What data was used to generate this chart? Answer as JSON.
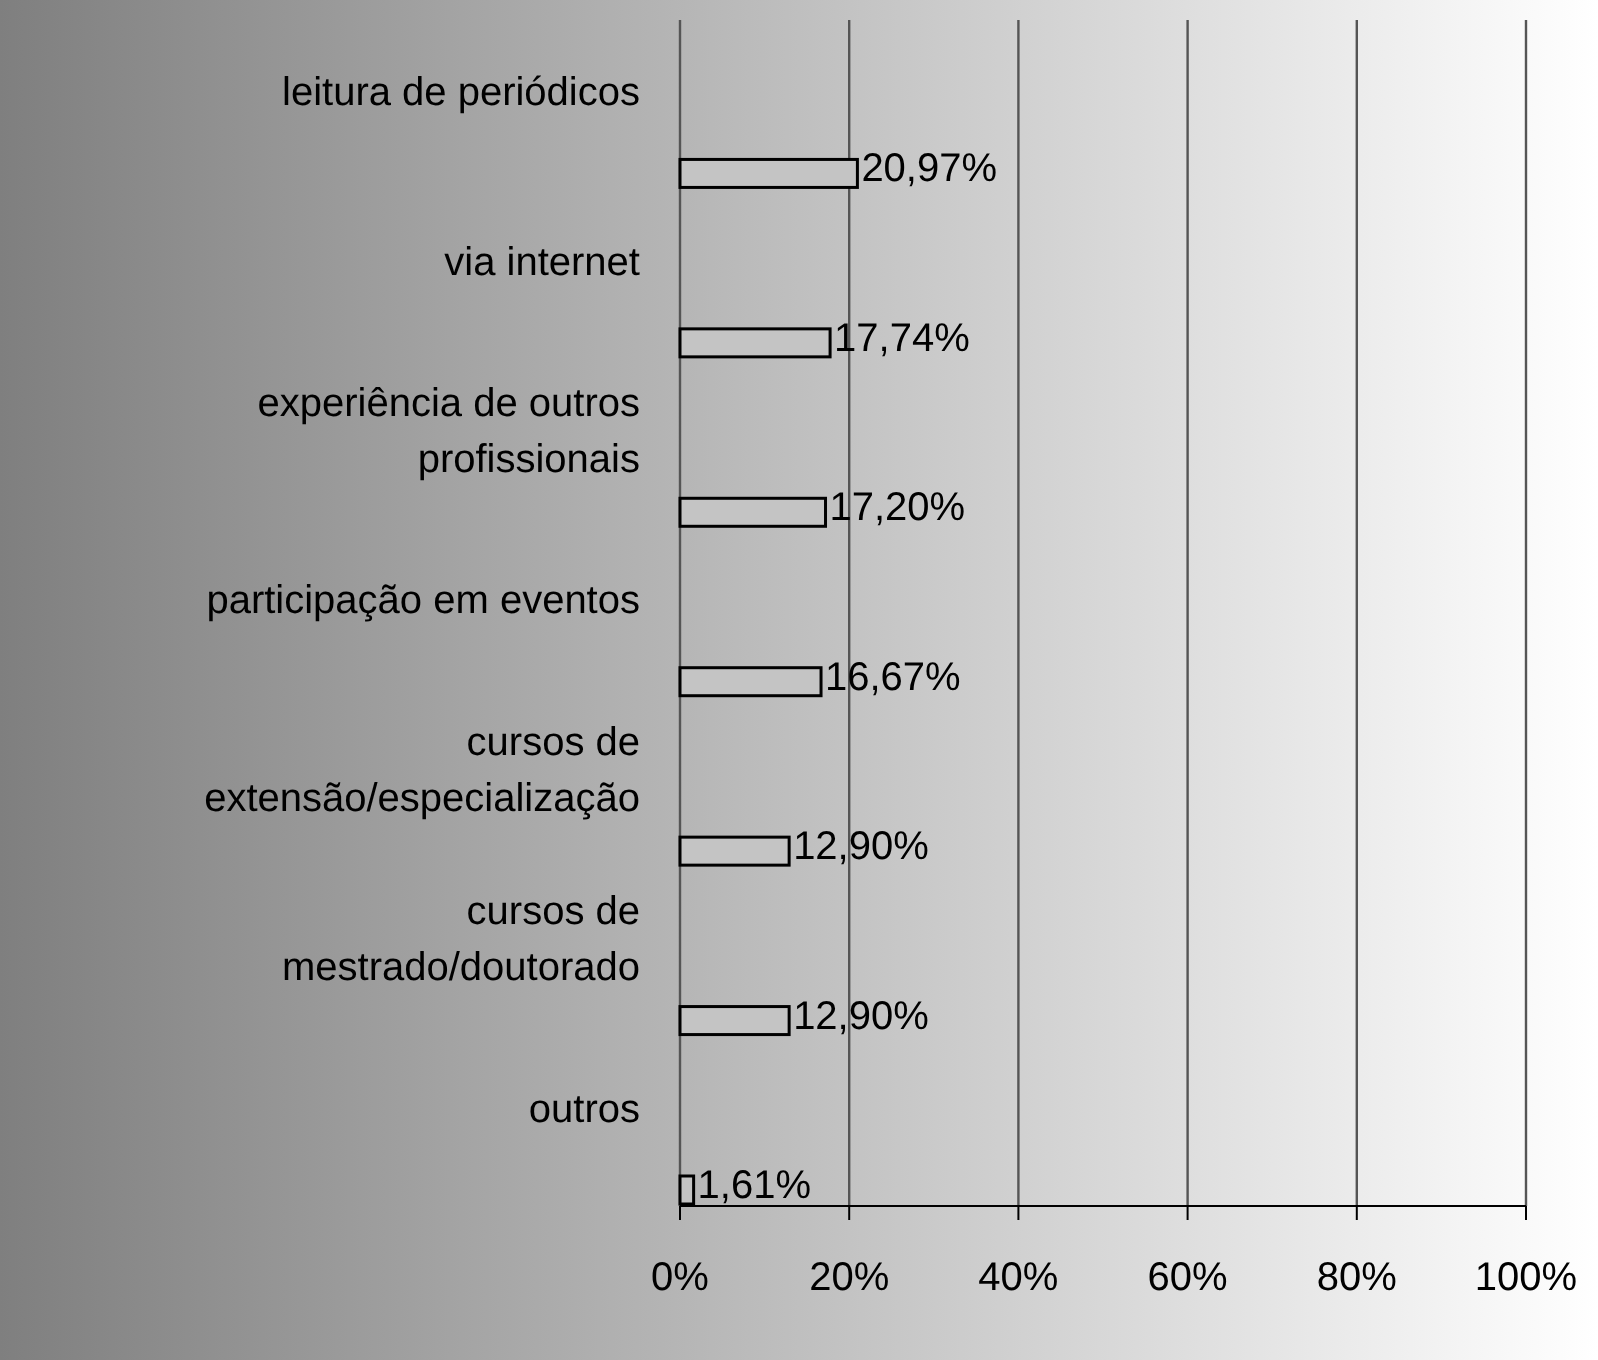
{
  "chart_data": {
    "type": "bar",
    "orientation": "horizontal",
    "categories": [
      "leitura de periódicos",
      "via internet",
      "experiência de outros profissionais",
      "participação em eventos",
      "cursos de extensão/especialização",
      "cursos de mestrado/doutorado",
      "outros"
    ],
    "values": [
      20.97,
      17.74,
      17.2,
      16.67,
      12.9,
      12.9,
      1.61
    ],
    "value_labels": [
      "20,97%",
      "17,74%",
      "17,20%",
      "16,67%",
      "12,90%",
      "12,90%",
      "1,61%"
    ],
    "color": "#c4c4c4",
    "xlim": [
      0,
      100
    ],
    "xticks": [
      {
        "value": 0,
        "label": "0%"
      },
      {
        "value": 20,
        "label": "20%"
      },
      {
        "value": 40,
        "label": "40%"
      },
      {
        "value": 60,
        "label": "60%"
      },
      {
        "value": 80,
        "label": "80%"
      },
      {
        "value": 100,
        "label": "100%"
      }
    ],
    "grid": "x"
  }
}
